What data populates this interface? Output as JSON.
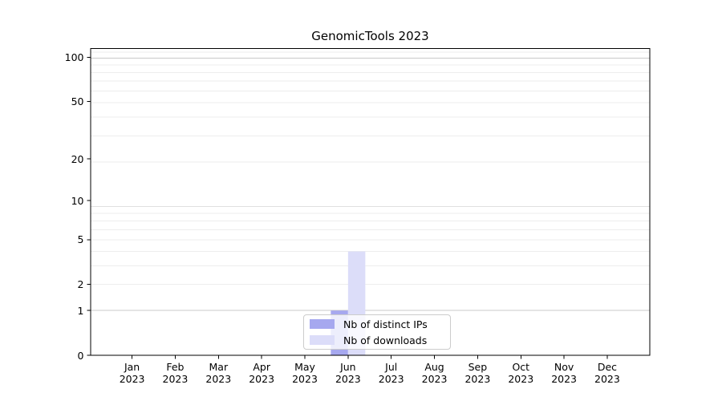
{
  "title": "GenomicTools 2023",
  "legend": {
    "items": [
      {
        "label": "Nb of distinct IPs",
        "color": "#a6a8ef"
      },
      {
        "label": "Nb of downloads",
        "color": "#dcddf9"
      }
    ]
  },
  "chart_data": {
    "type": "bar",
    "title": "GenomicTools 2023",
    "categories": [
      "Jan 2023",
      "Feb 2023",
      "Mar 2023",
      "Apr 2023",
      "May 2023",
      "Jun 2023",
      "Jul 2023",
      "Aug 2023",
      "Sep 2023",
      "Oct 2023",
      "Nov 2023",
      "Dec 2023"
    ],
    "x_tick_labels": [
      {
        "month": "Jan",
        "year": "2023"
      },
      {
        "month": "Feb",
        "year": "2023"
      },
      {
        "month": "Mar",
        "year": "2023"
      },
      {
        "month": "Apr",
        "year": "2023"
      },
      {
        "month": "May",
        "year": "2023"
      },
      {
        "month": "Jun",
        "year": "2023"
      },
      {
        "month": "Jul",
        "year": "2023"
      },
      {
        "month": "Aug",
        "year": "2023"
      },
      {
        "month": "Sep",
        "year": "2023"
      },
      {
        "month": "Oct",
        "year": "2023"
      },
      {
        "month": "Nov",
        "year": "2023"
      },
      {
        "month": "Dec",
        "year": "2023"
      }
    ],
    "series": [
      {
        "name": "Nb of distinct IPs",
        "color": "#a6a8ef",
        "values": [
          0,
          0,
          0,
          0,
          0,
          1,
          0,
          0,
          0,
          0,
          0,
          0
        ]
      },
      {
        "name": "Nb of downloads",
        "color": "#dcddf9",
        "values": [
          0,
          0,
          0,
          0,
          0,
          4,
          0,
          0,
          0,
          0,
          0,
          0
        ]
      }
    ],
    "y_scale": "log1p",
    "y_ticks": [
      0,
      1,
      2,
      5,
      10,
      20,
      50,
      100
    ],
    "ylim": [
      0,
      115
    ],
    "xlabel": "",
    "ylabel": "",
    "grid": "horizontal, minor log1p gridlines",
    "legend_position": "lower center"
  },
  "colors": {
    "spine": "#000000",
    "grid_minor": "#ededed",
    "grid_major": "#c9c9c9",
    "background": "#ffffff"
  }
}
